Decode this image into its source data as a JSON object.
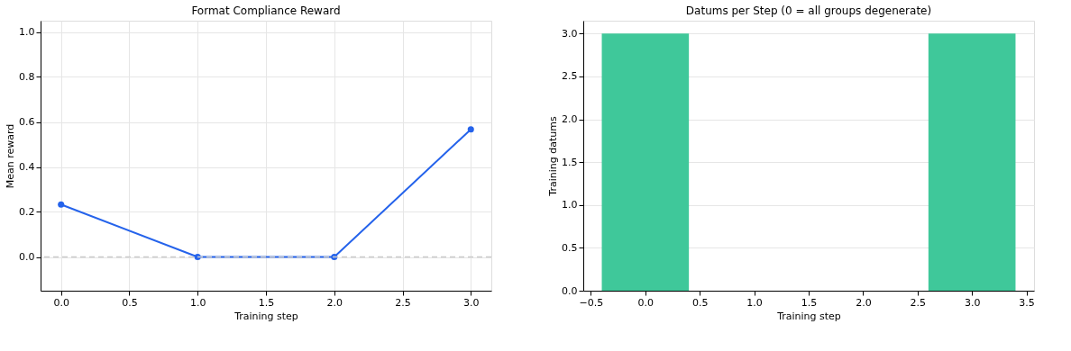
{
  "chart_data": [
    {
      "type": "line",
      "title": "Format Compliance Reward",
      "xlabel": "Training step",
      "ylabel": "Mean reward",
      "x": [
        0,
        1,
        2,
        3
      ],
      "series": [
        {
          "color": "#2563eb",
          "values": [
            0.233,
            0,
            0,
            0.567
          ]
        }
      ],
      "xlim": [
        -0.15,
        3.15
      ],
      "xticks": [
        {
          "value": 0,
          "label": "0.0"
        },
        0.5,
        {
          "value": 1,
          "label": "1.0"
        },
        1.5,
        {
          "value": 2,
          "label": "2.0"
        },
        2.5,
        {
          "value": 3,
          "label": "3.0"
        }
      ],
      "ylim": [
        -0.15,
        1.05
      ],
      "yticks": [
        {
          "value": 0,
          "label": "0.0"
        },
        0.2,
        0.4,
        0.6,
        0.8,
        {
          "value": 1,
          "label": "1.0"
        }
      ],
      "grid": true,
      "marker": "circle",
      "line_style": "solid",
      "ref_lines": [
        {
          "axis": "y",
          "value": 0,
          "color": "#cccccc",
          "line_style": "dashed"
        }
      ]
    },
    {
      "type": "bar",
      "title": "Datums per Step (0 = all groups degenerate)",
      "xlabel": "Training step",
      "ylabel": "Training datums",
      "x": [
        0,
        1,
        2,
        3
      ],
      "series": [
        {
          "color": "#3fc89a",
          "values": [
            3,
            0,
            0,
            3
          ]
        }
      ],
      "xlim": [
        -0.57,
        3.57
      ],
      "xticks": [
        {
          "value": -0.5,
          "label": "−0.5"
        },
        {
          "value": 0,
          "label": "0.0"
        },
        0.5,
        {
          "value": 1,
          "label": "1.0"
        },
        1.5,
        {
          "value": 2,
          "label": "2.0"
        },
        2.5,
        {
          "value": 3,
          "label": "3.0"
        },
        3.5
      ],
      "ylim": [
        0,
        3.15
      ],
      "yticks": [
        {
          "value": 0,
          "label": "0.0"
        },
        0.5,
        {
          "value": 1,
          "label": "1.0"
        },
        1.5,
        {
          "value": 2,
          "label": "2.0"
        },
        2.5,
        {
          "value": 3,
          "label": "3.0"
        }
      ],
      "grid": "y"
    }
  ]
}
